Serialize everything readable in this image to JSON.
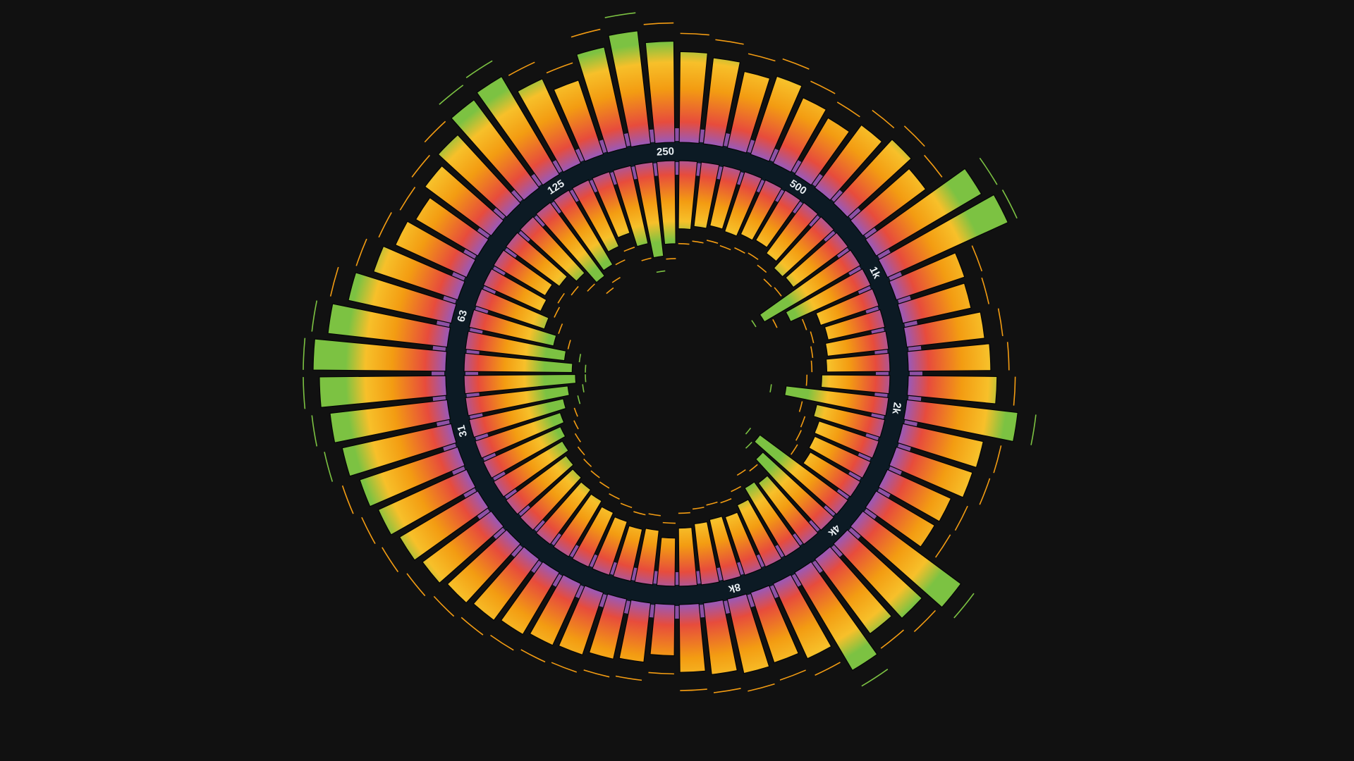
{
  "visualizer": {
    "type": "radial-spectrum",
    "band_count": 60,
    "frequency_labels": [
      {
        "text": "31",
        "band": 12
      },
      {
        "text": "63",
        "band": 17
      },
      {
        "text": "125",
        "band": 24
      },
      {
        "text": "250",
        "band": 29
      },
      {
        "text": "500",
        "band": 35
      },
      {
        "text": "1k",
        "band": 40
      },
      {
        "text": "2k",
        "band": 46
      },
      {
        "text": "4k",
        "band": 52
      },
      {
        "text": "8k",
        "band": 57
      }
    ],
    "outer_levels": [
      0.22,
      0.3,
      0.32,
      0.36,
      0.38,
      0.42,
      0.46,
      0.5,
      0.55,
      0.6,
      0.66,
      0.72,
      0.8,
      0.86,
      0.94,
      1.0,
      0.88,
      0.74,
      0.58,
      0.48,
      0.42,
      0.52,
      0.62,
      0.78,
      0.82,
      0.62,
      0.48,
      0.72,
      0.82,
      0.7,
      0.6,
      0.56,
      0.48,
      0.52,
      0.42,
      0.36,
      0.48,
      0.56,
      0.48,
      0.9,
      1.0,
      0.42,
      0.4,
      0.48,
      0.52,
      0.58,
      0.8,
      0.52,
      0.5,
      0.4,
      0.38,
      0.9,
      0.7,
      0.62,
      0.82,
      0.52,
      0.44,
      0.46,
      0.42,
      0.38
    ],
    "inner_levels": [
      0.24,
      0.32,
      0.3,
      0.34,
      0.38,
      0.44,
      0.48,
      0.52,
      0.56,
      0.62,
      0.68,
      0.74,
      0.82,
      0.9,
      1.0,
      0.96,
      0.86,
      0.7,
      0.54,
      0.42,
      0.38,
      0.46,
      0.58,
      0.76,
      0.7,
      0.54,
      0.44,
      0.62,
      0.8,
      0.66,
      0.48,
      0.44,
      0.4,
      0.42,
      0.38,
      0.36,
      0.42,
      0.5,
      0.48,
      1.0,
      0.72,
      0.4,
      0.36,
      0.4,
      0.42,
      0.48,
      0.9,
      0.5,
      0.42,
      0.4,
      0.36,
      0.98,
      0.82,
      0.58,
      0.62,
      0.48,
      0.4,
      0.42,
      0.4,
      0.36
    ],
    "outer_peaks": [
      0.3,
      0.38,
      0.4,
      0.44,
      0.46,
      0.5,
      0.54,
      0.58,
      0.64,
      0.7,
      0.74,
      0.8,
      0.88,
      0.94,
      1.0,
      1.0,
      0.94,
      0.82,
      0.66,
      0.56,
      0.5,
      0.58,
      0.7,
      0.86,
      0.9,
      0.7,
      0.56,
      0.8,
      0.9,
      0.78,
      0.68,
      0.64,
      0.56,
      0.6,
      0.5,
      0.44,
      0.56,
      0.64,
      0.58,
      0.98,
      1.0,
      0.5,
      0.48,
      0.56,
      0.6,
      0.66,
      0.88,
      0.6,
      0.58,
      0.48,
      0.46,
      0.96,
      0.78,
      0.7,
      0.9,
      0.6,
      0.52,
      0.54,
      0.5,
      0.46
    ],
    "inner_peaks": [
      0.3,
      0.38,
      0.36,
      0.4,
      0.44,
      0.5,
      0.54,
      0.58,
      0.62,
      0.68,
      0.74,
      0.8,
      0.88,
      0.96,
      1.0,
      1.0,
      0.92,
      0.76,
      0.6,
      0.48,
      0.44,
      0.52,
      0.64,
      0.82,
      0.76,
      0.6,
      0.5,
      0.68,
      0.86,
      0.72,
      0.54,
      0.5,
      0.46,
      0.48,
      0.44,
      0.42,
      0.48,
      0.56,
      0.54,
      1.0,
      0.78,
      0.46,
      0.42,
      0.46,
      0.48,
      0.54,
      0.96,
      0.56,
      0.48,
      0.46,
      0.42,
      1.0,
      0.88,
      0.64,
      0.68,
      0.54,
      0.46,
      0.48,
      0.46,
      0.42
    ],
    "colors": {
      "background": "#111111",
      "core_ring": "#0c1a24",
      "gradient": [
        "#9b59b6",
        "#e74c3c",
        "#f39c12",
        "#f7c02a",
        "#7cc242"
      ],
      "label": "#e8eef2",
      "peak_high": "#7cc242",
      "peak_low": "#f39c12"
    }
  }
}
